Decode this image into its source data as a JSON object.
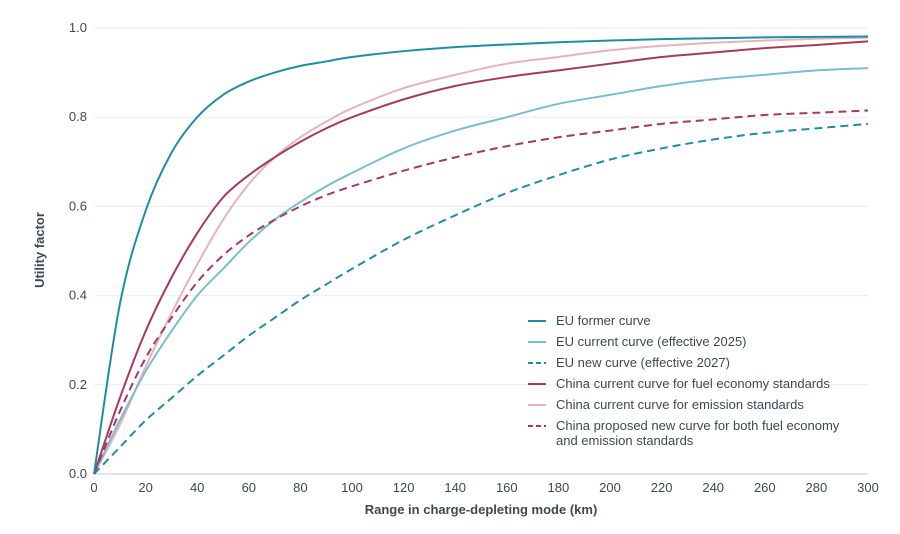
{
  "chart_data": {
    "type": "line",
    "xlabel": "Range in charge-depleting mode (km)",
    "ylabel": "Utility factor",
    "xlim": [
      0,
      300
    ],
    "ylim": [
      0,
      1.0
    ],
    "x_ticks": [
      "0",
      "20",
      "40",
      "60",
      "80",
      "100",
      "120",
      "140",
      "160",
      "180",
      "200",
      "220",
      "240",
      "260",
      "280",
      "300"
    ],
    "y_ticks": [
      "0.0",
      "0.2",
      "0.4",
      "0.6",
      "0.8",
      "1.0"
    ],
    "grid": "horizontal",
    "legend_position": "bottom-right",
    "x": [
      0,
      10,
      20,
      30,
      40,
      50,
      60,
      70,
      80,
      90,
      100,
      120,
      140,
      160,
      180,
      200,
      220,
      240,
      260,
      280,
      300
    ],
    "series": [
      {
        "name": "EU former curve",
        "color": "#1f8ea3",
        "dash": "solid",
        "values": [
          0,
          0.38,
          0.59,
          0.72,
          0.8,
          0.85,
          0.88,
          0.9,
          0.915,
          0.925,
          0.935,
          0.948,
          0.957,
          0.963,
          0.968,
          0.972,
          0.975,
          0.977,
          0.979,
          0.98,
          0.981
        ]
      },
      {
        "name": "EU current curve (effective 2025)",
        "color": "#7bbdd0",
        "dash": "solid",
        "values": [
          0,
          0.12,
          0.23,
          0.32,
          0.4,
          0.46,
          0.52,
          0.57,
          0.61,
          0.645,
          0.675,
          0.73,
          0.77,
          0.8,
          0.83,
          0.85,
          0.87,
          0.885,
          0.895,
          0.905,
          0.91
        ]
      },
      {
        "name": "EU new curve (effective 2027)",
        "color": "#1f8ea3",
        "dash": "dashed",
        "values": [
          0,
          0.06,
          0.12,
          0.17,
          0.22,
          0.265,
          0.31,
          0.35,
          0.39,
          0.425,
          0.46,
          0.525,
          0.58,
          0.63,
          0.67,
          0.705,
          0.73,
          0.75,
          0.765,
          0.775,
          0.785
        ]
      },
      {
        "name": "China current curve for fuel economy standards",
        "color": "#a63a5c",
        "dash": "solid",
        "values": [
          0,
          0.17,
          0.32,
          0.44,
          0.54,
          0.62,
          0.67,
          0.71,
          0.745,
          0.775,
          0.8,
          0.84,
          0.87,
          0.89,
          0.905,
          0.92,
          0.935,
          0.945,
          0.955,
          0.962,
          0.97
        ]
      },
      {
        "name": "China current curve for emission standards",
        "color": "#e5b4ba",
        "dash": "solid",
        "values": [
          0,
          0.11,
          0.24,
          0.36,
          0.47,
          0.57,
          0.65,
          0.71,
          0.755,
          0.79,
          0.82,
          0.865,
          0.895,
          0.92,
          0.935,
          0.95,
          0.96,
          0.967,
          0.972,
          0.976,
          0.978
        ]
      },
      {
        "name": "China proposed new curve for both fuel economy and emission standards",
        "name_lines": [
          "China proposed new curve for both fuel economy",
          "and emission standards"
        ],
        "color": "#a63a5c",
        "dash": "dashed",
        "values": [
          0,
          0.14,
          0.26,
          0.35,
          0.43,
          0.49,
          0.535,
          0.57,
          0.6,
          0.625,
          0.645,
          0.68,
          0.71,
          0.735,
          0.755,
          0.77,
          0.785,
          0.795,
          0.805,
          0.81,
          0.815
        ]
      }
    ]
  }
}
